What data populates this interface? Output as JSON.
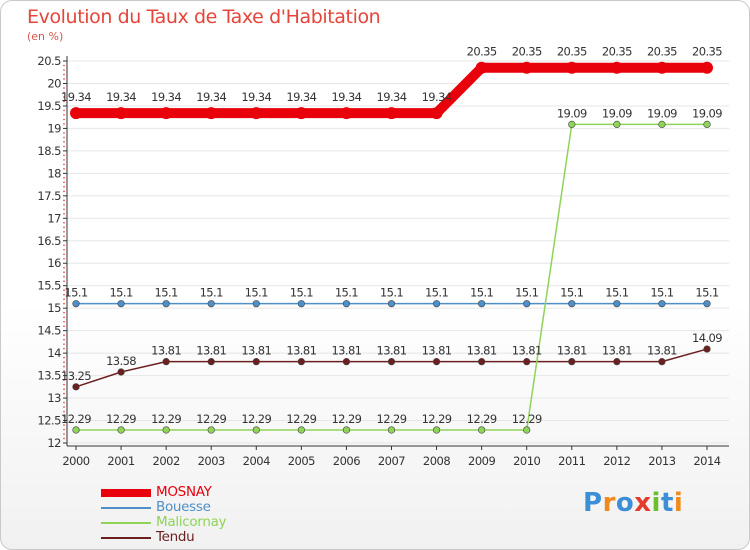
{
  "title": "Evolution du Taux de Taxe d'Habitation",
  "subtitle": "(en %)",
  "logo": {
    "text": "Proxiti",
    "letters": [
      {
        "ch": "P",
        "color": "#3b8fd6"
      },
      {
        "ch": "r",
        "color": "#f08a1c"
      },
      {
        "ch": "o",
        "color": "#3b8fd6"
      },
      {
        "ch": "x",
        "color": "#e53a2e"
      },
      {
        "ch": "i",
        "color": "#6cbf2a"
      },
      {
        "ch": "t",
        "color": "#3b8fd6"
      },
      {
        "ch": "i",
        "color": "#f08a1c"
      }
    ]
  },
  "chart_data": {
    "type": "line",
    "title": "Evolution du Taux de Taxe d'Habitation",
    "ylabel": "(en %)",
    "xlabel": "",
    "x": [
      "2000",
      "2001",
      "2002",
      "2003",
      "2004",
      "2005",
      "2006",
      "2007",
      "2008",
      "2009",
      "2010",
      "2011",
      "2012",
      "2013",
      "2014"
    ],
    "ylim": [
      12,
      20.5
    ],
    "yticks": [
      "12",
      "12.5",
      "13",
      "13.5",
      "14",
      "14.5",
      "15",
      "15.5",
      "16",
      "16.5",
      "17",
      "17.5",
      "18",
      "18.5",
      "19",
      "19.5",
      "20",
      "20.5"
    ],
    "series": [
      {
        "name": "MOSNAY",
        "color": "#e8000b",
        "values": [
          19.34,
          19.34,
          19.34,
          19.34,
          19.34,
          19.34,
          19.34,
          19.34,
          19.34,
          20.35,
          20.35,
          20.35,
          20.35,
          20.35,
          20.35
        ],
        "labels": [
          "19.34",
          "19.34",
          "19.34",
          "19.34",
          "19.34",
          "19.34",
          "19.34",
          "19.34",
          "19.34",
          "20.35",
          "20.35",
          "20.35",
          "20.35",
          "20.35",
          "20.35"
        ]
      },
      {
        "name": "Bouesse",
        "color": "#4f8fc7",
        "values": [
          15.1,
          15.1,
          15.1,
          15.1,
          15.1,
          15.1,
          15.1,
          15.1,
          15.1,
          15.1,
          15.1,
          15.1,
          15.1,
          15.1,
          15.1
        ],
        "labels": [
          "15.1",
          "15.1",
          "15.1",
          "15.1",
          "15.1",
          "15.1",
          "15.1",
          "15.1",
          "15.1",
          "15.1",
          "15.1",
          "15.1",
          "15.1",
          "15.1",
          "15.1"
        ]
      },
      {
        "name": "Malicornay",
        "color": "#8fd358",
        "values": [
          12.29,
          12.29,
          12.29,
          12.29,
          12.29,
          12.29,
          12.29,
          12.29,
          12.29,
          12.29,
          12.29,
          19.09,
          19.09,
          19.09,
          19.09
        ],
        "labels": [
          "12.29",
          "12.29",
          "12.29",
          "12.29",
          "12.29",
          "12.29",
          "12.29",
          "12.29",
          "12.29",
          "12.29",
          "12.29",
          "19.09",
          "19.09",
          "19.09",
          "19.09"
        ]
      },
      {
        "name": "Tendu",
        "color": "#6b1f1f",
        "values": [
          13.25,
          13.58,
          13.81,
          13.81,
          13.81,
          13.81,
          13.81,
          13.81,
          13.81,
          13.81,
          13.81,
          13.81,
          13.81,
          13.81,
          14.09
        ],
        "labels": [
          "13.25",
          "13.58",
          "13.81",
          "13.81",
          "13.81",
          "13.81",
          "13.81",
          "13.81",
          "13.81",
          "13.81",
          "13.81",
          "13.81",
          "13.81",
          "13.81",
          "14.09"
        ]
      }
    ],
    "legend_position": "bottom-left"
  }
}
